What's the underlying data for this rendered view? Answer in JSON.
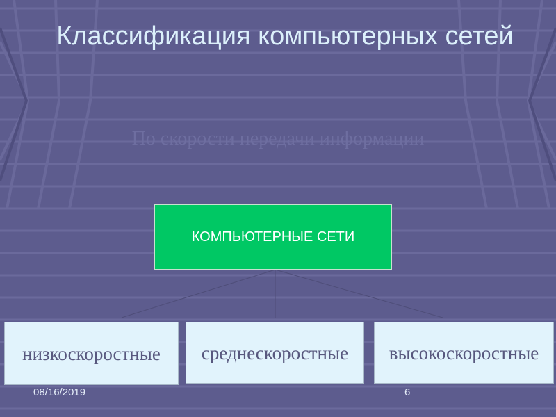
{
  "title": "Классификация компьютерных сетей",
  "subtitle": "По скорости передачи информации",
  "diagram": {
    "root": "КОМПЬЮТЕРНЫЕ СЕТИ",
    "children": [
      "низкоскоростные",
      "среднескоростные",
      "высокоскоростные"
    ]
  },
  "footer": {
    "date": "08/16/2019",
    "page": "6"
  },
  "colors": {
    "background": "#5d5c8e",
    "root_fill": "#00c864",
    "child_fill": "#e1f3fc",
    "title": "#dcf0fb"
  }
}
